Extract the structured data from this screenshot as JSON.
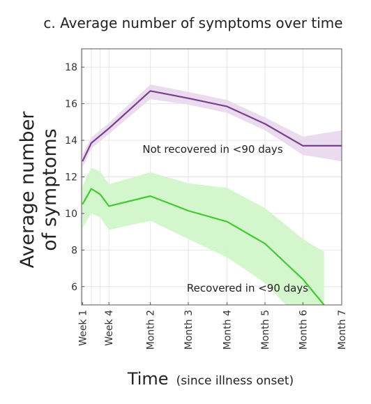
{
  "chart_data": {
    "type": "line",
    "title": "c. Average number of symptoms over time",
    "ylabel_line1": "Average number",
    "ylabel_line2": "of symptoms",
    "xlabel": "Time",
    "xlabel_sub": "(since illness onset)",
    "ylim": [
      5,
      19
    ],
    "y_ticks": [
      6,
      8,
      10,
      12,
      14,
      16,
      18
    ],
    "xlim_weeks": [
      0.9,
      30.4
    ],
    "grid": true,
    "x_ticks": [
      {
        "label": "Week 1",
        "week": 1
      },
      {
        "label": "Week 4",
        "week": 4
      },
      {
        "label": "Month 2",
        "week": 8.7
      },
      {
        "label": "Month 3",
        "week": 13
      },
      {
        "label": "Month 4",
        "week": 17.4
      },
      {
        "label": "Month 5",
        "week": 21.7
      },
      {
        "label": "Month 6",
        "week": 26
      },
      {
        "label": "Month 7",
        "week": 30.4
      }
    ],
    "x_minor_gridlines_weeks": [
      1,
      2,
      3,
      4
    ],
    "series": [
      {
        "name": "Not recovered in <90 days",
        "color": "#7b3f8f",
        "band_color": "#e9d9ee",
        "x": [
          1,
          2,
          4,
          8.7,
          13,
          17.4,
          21.7,
          26,
          30.4
        ],
        "y": [
          12.85,
          13.85,
          14.65,
          16.7,
          16.3,
          15.85,
          14.9,
          13.7,
          13.7
        ],
        "lower": [
          12.5,
          13.55,
          14.35,
          16.25,
          15.95,
          15.5,
          14.55,
          13.2,
          12.85
        ],
        "upper": [
          13.2,
          14.15,
          14.95,
          17.05,
          16.65,
          16.2,
          15.25,
          14.2,
          14.55
        ]
      },
      {
        "name": "Recovered in <90 days",
        "color": "#3fcc2e",
        "band_color": "#d2f5c9",
        "x": [
          1,
          2,
          3,
          4,
          8.7,
          13,
          17.4,
          21.7,
          26,
          28.4
        ],
        "y": [
          10.5,
          11.35,
          11.05,
          10.4,
          10.95,
          10.15,
          9.55,
          8.35,
          6.4,
          5.0
        ],
        "lower": [
          9.2,
          10.0,
          9.8,
          9.1,
          9.6,
          8.6,
          7.6,
          6.2,
          4.0,
          3.0
        ],
        "upper": [
          11.5,
          12.5,
          12.3,
          11.6,
          12.25,
          11.65,
          11.4,
          10.3,
          8.6,
          7.9
        ]
      }
    ]
  }
}
